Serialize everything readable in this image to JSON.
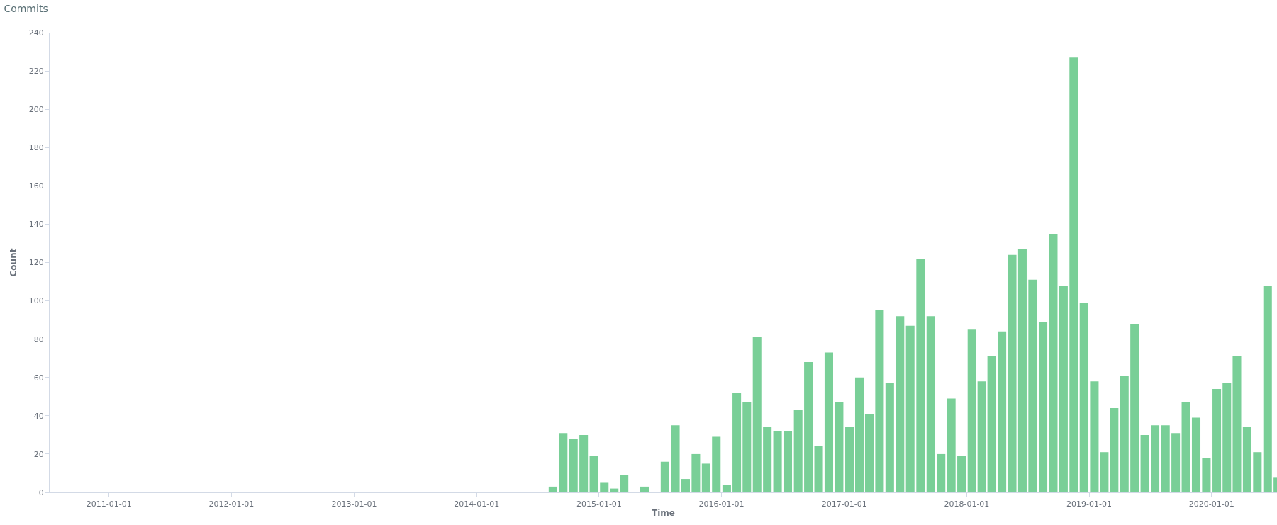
{
  "chart_data": {
    "type": "bar",
    "title": "Commits",
    "xlabel": "Time",
    "ylabel": "Count",
    "x": [
      "2014-08",
      "2014-09",
      "2014-10",
      "2014-11",
      "2014-12",
      "2015-01",
      "2015-02",
      "2015-03",
      "2015-04",
      "2015-05",
      "2015-06",
      "2015-07",
      "2015-08",
      "2015-09",
      "2015-10",
      "2015-11",
      "2015-12",
      "2016-01",
      "2016-02",
      "2016-03",
      "2016-04",
      "2016-05",
      "2016-06",
      "2016-07",
      "2016-08",
      "2016-09",
      "2016-10",
      "2016-11",
      "2016-12",
      "2017-01",
      "2017-02",
      "2017-03",
      "2017-04",
      "2017-05",
      "2017-06",
      "2017-07",
      "2017-08",
      "2017-09",
      "2017-10",
      "2017-11",
      "2017-12",
      "2018-01",
      "2018-02",
      "2018-03",
      "2018-04",
      "2018-05",
      "2018-06",
      "2018-07",
      "2018-08",
      "2018-09",
      "2018-10",
      "2018-11",
      "2018-12",
      "2019-01",
      "2019-02",
      "2019-03",
      "2019-04",
      "2019-05",
      "2019-06",
      "2019-07",
      "2019-08",
      "2019-09",
      "2019-10",
      "2019-11",
      "2019-12",
      "2020-01",
      "2020-02",
      "2020-03",
      "2020-04",
      "2020-05",
      "2020-06",
      "2020-07"
    ],
    "values": [
      3,
      31,
      28,
      30,
      19,
      5,
      2,
      9,
      0,
      3,
      0,
      16,
      35,
      7,
      20,
      15,
      29,
      4,
      52,
      47,
      81,
      34,
      32,
      32,
      43,
      68,
      24,
      73,
      47,
      34,
      60,
      41,
      95,
      57,
      92,
      87,
      122,
      92,
      20,
      49,
      19,
      85,
      58,
      71,
      84,
      124,
      127,
      111,
      89,
      135,
      108,
      227,
      99,
      58,
      21,
      44,
      61,
      88,
      30,
      35,
      35,
      31,
      47,
      39,
      18,
      54,
      57,
      71,
      34,
      21,
      108,
      8
    ],
    "color": "#79cf97",
    "xlim": [
      "2010-07-08",
      "2020-07-14"
    ],
    "xticks": [
      "2011-01-01",
      "2012-01-01",
      "2013-01-01",
      "2014-01-01",
      "2015-01-01",
      "2016-01-01",
      "2017-01-01",
      "2018-01-01",
      "2019-01-01",
      "2020-01-01"
    ],
    "ylim": [
      0,
      240
    ],
    "yticks": [
      0,
      20,
      40,
      60,
      80,
      100,
      120,
      140,
      160,
      180,
      200,
      220,
      240
    ]
  }
}
